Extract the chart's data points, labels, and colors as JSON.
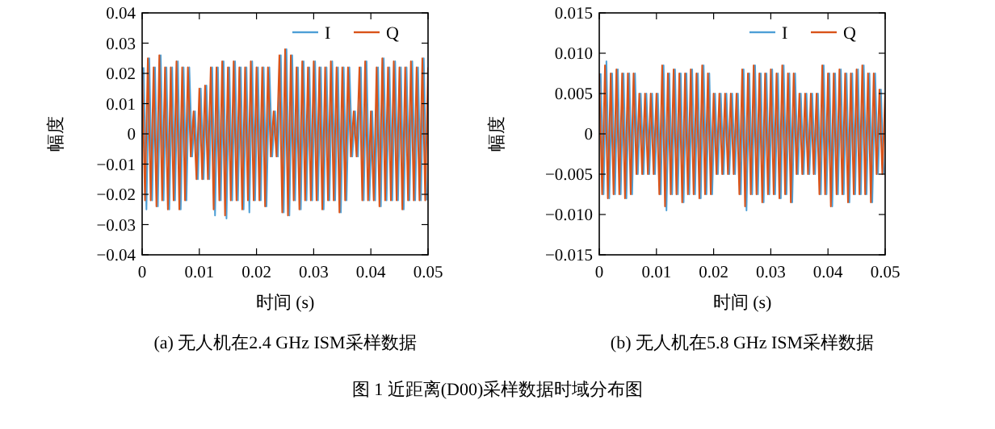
{
  "chart_data": [
    {
      "type": "line",
      "title": "(a) 无人机在2.4 GHz ISM采样数据",
      "xlabel": "时间 (s)",
      "ylabel": "幅度",
      "xlim": [
        0,
        0.05
      ],
      "ylim": [
        -0.04,
        0.04
      ],
      "xticks": [
        0,
        0.01,
        0.02,
        0.03,
        0.04,
        0.05
      ],
      "yticks": [
        -0.04,
        -0.03,
        -0.02,
        -0.01,
        0,
        0.01,
        0.02,
        0.03,
        0.04
      ],
      "legend": "top right",
      "line_style": "solid",
      "annotations": [
        "图 1 近距离(D00)采样数据时域分布图"
      ],
      "x": [
        0,
        0.0005,
        0.001,
        0.0015,
        0.002,
        0.0025,
        0.003,
        0.0035,
        0.004,
        0.0045,
        0.005,
        0.0055,
        0.006,
        0.0065,
        0.007,
        0.0075,
        0.008,
        0.0085,
        0.009,
        0.0095,
        0.01,
        0.0105,
        0.011,
        0.0115,
        0.012,
        0.0125,
        0.013,
        0.0135,
        0.014,
        0.0145,
        0.015,
        0.0155,
        0.016,
        0.0165,
        0.017,
        0.0175,
        0.018,
        0.0185,
        0.019,
        0.0195,
        0.02,
        0.0205,
        0.021,
        0.0215,
        0.022,
        0.0225,
        0.023,
        0.0235,
        0.024,
        0.0245,
        0.025,
        0.0255,
        0.026,
        0.0265,
        0.027,
        0.0275,
        0.028,
        0.0285,
        0.029,
        0.0295,
        0.03,
        0.0305,
        0.031,
        0.0315,
        0.032,
        0.0325,
        0.033,
        0.0335,
        0.034,
        0.0345,
        0.035,
        0.0355,
        0.036,
        0.0365,
        0.037,
        0.0375,
        0.038,
        0.0385,
        0.039,
        0.0395,
        0.04,
        0.0405,
        0.041,
        0.0415,
        0.042,
        0.0425,
        0.043,
        0.0435,
        0.044,
        0.0445,
        0.045,
        0.0455,
        0.046,
        0.0465,
        0.047,
        0.0475,
        0.048,
        0.0485,
        0.049,
        0.0495,
        0.05
      ],
      "series": [
        {
          "name": "I",
          "color": "#4d9fd6",
          "x": [
            0.00025,
            0.00075,
            0.00125,
            0.00175,
            0.00225,
            0.00275,
            0.00325,
            0.00375,
            0.00425,
            0.00475,
            0.00525,
            0.00575,
            0.00625,
            0.00675,
            0.00725,
            0.00775,
            0.00825,
            0.00875,
            0.00925,
            0.00975,
            0.01025,
            0.01075,
            0.01125,
            0.01175,
            0.01225,
            0.01275,
            0.01325,
            0.01375,
            0.01425,
            0.01475,
            0.01525,
            0.01575,
            0.01625,
            0.01675,
            0.01725,
            0.01775,
            0.01825,
            0.01875,
            0.01925,
            0.01975,
            0.02025,
            0.02075,
            0.02125,
            0.02175,
            0.02225,
            0.02275,
            0.02325,
            0.02375,
            0.02425,
            0.02475,
            0.02525,
            0.02575,
            0.02625,
            0.02675,
            0.02725,
            0.02775,
            0.02825,
            0.02875,
            0.02925,
            0.02975,
            0.03025,
            0.03075,
            0.03125,
            0.03175,
            0.03225,
            0.03275,
            0.03325,
            0.03375,
            0.03425,
            0.03475,
            0.03525,
            0.03575,
            0.03625,
            0.03675,
            0.03725,
            0.03775,
            0.03825,
            0.03875,
            0.03925,
            0.03975,
            0.04025,
            0.04075,
            0.04125,
            0.04175,
            0.04225,
            0.04275,
            0.04325,
            0.04375,
            0.04425,
            0.04475,
            0.04525,
            0.04575,
            0.04625,
            0.04675,
            0.04725,
            0.04775,
            0.04825,
            0.04875,
            0.04925,
            0.04975
          ],
          "values": [
            0.022,
            -0.025,
            0.025,
            -0.022,
            0.022,
            -0.024,
            0.026,
            -0.022,
            0.022,
            -0.025,
            0.022,
            -0.022,
            0.024,
            -0.025,
            0.022,
            -0.022,
            0.022,
            -0.0075,
            0.0075,
            -0.015,
            0.015,
            -0.015,
            0.016,
            -0.015,
            0.022,
            -0.027,
            0.022,
            -0.022,
            0.024,
            -0.028,
            0.022,
            -0.022,
            0.024,
            -0.022,
            0.022,
            -0.025,
            0.022,
            -0.026,
            0.024,
            -0.022,
            0.022,
            -0.022,
            0.022,
            -0.024,
            0.022,
            -0.0075,
            0.0075,
            -0.0075,
            0.026,
            -0.026,
            0.028,
            -0.027,
            0.026,
            -0.022,
            0.022,
            -0.025,
            0.024,
            -0.022,
            0.022,
            -0.022,
            0.024,
            -0.022,
            0.022,
            -0.025,
            0.022,
            -0.022,
            0.024,
            -0.022,
            0.022,
            -0.026,
            0.022,
            -0.022,
            0.022,
            -0.0075,
            0.0075,
            -0.0075,
            0.022,
            -0.022,
            0.024,
            -0.022,
            0.0075,
            -0.022,
            0.022,
            -0.024,
            0.025,
            -0.022,
            0.022,
            -0.022,
            0.024,
            -0.022,
            0.022,
            -0.025,
            0.022,
            -0.022,
            0.024,
            -0.022,
            0.022,
            -0.022,
            0.025,
            -0.022
          ]
        },
        {
          "name": "Q",
          "color": "#d95319",
          "values": [
            0.022,
            -0.022,
            0.025,
            -0.022,
            0.022,
            -0.024,
            0.026,
            -0.022,
            0.022,
            -0.025,
            0.022,
            -0.022,
            0.024,
            -0.025,
            0.022,
            -0.022,
            0.022,
            -0.0075,
            0.0075,
            -0.015,
            0.015,
            -0.015,
            0.016,
            -0.015,
            0.022,
            -0.025,
            0.022,
            -0.022,
            0.024,
            -0.027,
            0.022,
            -0.022,
            0.024,
            -0.022,
            0.022,
            -0.025,
            0.022,
            -0.022,
            0.024,
            -0.022,
            0.022,
            -0.022,
            0.022,
            -0.024,
            0.022,
            -0.0075,
            0.0075,
            -0.0075,
            0.026,
            -0.026,
            0.028,
            -0.027,
            0.026,
            -0.022,
            0.022,
            -0.025,
            0.024,
            -0.022,
            0.022,
            -0.022,
            0.024,
            -0.022,
            0.022,
            -0.025,
            0.022,
            -0.022,
            0.024,
            -0.022,
            0.022,
            -0.026,
            0.022,
            -0.022,
            0.022,
            -0.0075,
            0.0075,
            -0.0075,
            0.022,
            -0.022,
            0.024,
            -0.022,
            0.0075,
            -0.022,
            0.022,
            -0.024,
            0.025,
            -0.022,
            0.022,
            -0.022,
            0.024,
            -0.022,
            0.022,
            -0.025,
            0.022,
            -0.022,
            0.024,
            -0.022,
            0.022,
            -0.022,
            0.025,
            -0.022,
            0.022
          ]
        }
      ]
    },
    {
      "type": "line",
      "title": "(b) 无人机在5.8 GHz ISM采样数据",
      "xlabel": "时间 (s)",
      "ylabel": "幅度",
      "xlim": [
        0,
        0.05
      ],
      "ylim": [
        -0.015,
        0.015
      ],
      "xticks": [
        0,
        0.01,
        0.02,
        0.03,
        0.04,
        0.05
      ],
      "yticks": [
        {
          "value": -0.015,
          "label": "−0.015"
        },
        {
          "value": -0.01,
          "label": "−0.010"
        },
        {
          "value": -0.005,
          "label": "−0.005"
        },
        0,
        {
          "value": 0.005,
          "label": "0.005"
        },
        {
          "value": 0.01,
          "label": "0.010"
        },
        {
          "value": 0.015,
          "label": "0.015"
        }
      ],
      "legend": "top right",
      "line_style": "solid",
      "x": [
        0,
        0.0005,
        0.001,
        0.0015,
        0.002,
        0.0025,
        0.003,
        0.0035,
        0.004,
        0.0045,
        0.005,
        0.0055,
        0.006,
        0.0065,
        0.007,
        0.0075,
        0.008,
        0.0085,
        0.009,
        0.0095,
        0.01,
        0.0105,
        0.011,
        0.0115,
        0.012,
        0.0125,
        0.013,
        0.0135,
        0.014,
        0.0145,
        0.015,
        0.0155,
        0.016,
        0.0165,
        0.017,
        0.0175,
        0.018,
        0.0185,
        0.019,
        0.0195,
        0.02,
        0.0205,
        0.021,
        0.0215,
        0.022,
        0.0225,
        0.023,
        0.0235,
        0.024,
        0.0245,
        0.025,
        0.0255,
        0.026,
        0.0265,
        0.027,
        0.0275,
        0.028,
        0.0285,
        0.029,
        0.0295,
        0.03,
        0.0305,
        0.031,
        0.0315,
        0.032,
        0.0325,
        0.033,
        0.0335,
        0.034,
        0.0345,
        0.035,
        0.0355,
        0.036,
        0.0365,
        0.037,
        0.0375,
        0.038,
        0.0385,
        0.039,
        0.0395,
        0.04,
        0.0405,
        0.041,
        0.0415,
        0.042,
        0.0425,
        0.043,
        0.0435,
        0.044,
        0.0445,
        0.045,
        0.0455,
        0.046,
        0.0465,
        0.047,
        0.0475,
        0.048,
        0.0485,
        0.049,
        0.0495,
        0.05
      ],
      "series": [
        {
          "name": "I",
          "color": "#4d9fd6",
          "x": [
            0.00025,
            0.00075,
            0.00125,
            0.00175,
            0.00225,
            0.00275,
            0.00325,
            0.00375,
            0.00425,
            0.00475,
            0.00525,
            0.00575,
            0.00625,
            0.00675,
            0.00725,
            0.00775,
            0.00825,
            0.00875,
            0.00925,
            0.00975,
            0.01025,
            0.01075,
            0.01125,
            0.01175,
            0.01225,
            0.01275,
            0.01325,
            0.01375,
            0.01425,
            0.01475,
            0.01525,
            0.01575,
            0.01625,
            0.01675,
            0.01725,
            0.01775,
            0.01825,
            0.01875,
            0.01925,
            0.01975,
            0.02025,
            0.02075,
            0.02125,
            0.02175,
            0.02225,
            0.02275,
            0.02325,
            0.02375,
            0.02425,
            0.02475,
            0.02525,
            0.02575,
            0.02625,
            0.02675,
            0.02725,
            0.02775,
            0.02825,
            0.02875,
            0.02925,
            0.02975,
            0.03025,
            0.03075,
            0.03125,
            0.03175,
            0.03225,
            0.03275,
            0.03325,
            0.03375,
            0.03425,
            0.03475,
            0.03525,
            0.03575,
            0.03625,
            0.03675,
            0.03725,
            0.03775,
            0.03825,
            0.03875,
            0.03925,
            0.03975,
            0.04025,
            0.04075,
            0.04125,
            0.04175,
            0.04225,
            0.04275,
            0.04325,
            0.04375,
            0.04425,
            0.04475,
            0.04525,
            0.04575,
            0.04625,
            0.04675,
            0.04725,
            0.04775,
            0.04825,
            0.04875,
            0.04925,
            0.04975
          ],
          "values": [
            0.0075,
            -0.0075,
            0.009,
            -0.008,
            0.0075,
            -0.0075,
            0.008,
            -0.0075,
            0.0075,
            -0.008,
            0.0075,
            -0.0075,
            0.0075,
            -0.005,
            0.005,
            -0.005,
            0.005,
            -0.005,
            0.005,
            -0.005,
            0.005,
            -0.0075,
            0.0085,
            -0.0095,
            0.0075,
            -0.0075,
            0.008,
            -0.0075,
            0.0075,
            -0.0085,
            0.0075,
            -0.0075,
            0.008,
            -0.0075,
            0.0075,
            -0.008,
            0.0085,
            -0.0075,
            0.0075,
            -0.0075,
            0.005,
            -0.005,
            0.005,
            -0.005,
            0.005,
            -0.005,
            0.005,
            -0.005,
            0.005,
            -0.0075,
            0.008,
            -0.0095,
            0.0075,
            -0.0075,
            0.0085,
            -0.0075,
            0.0075,
            -0.0085,
            0.0075,
            -0.0075,
            0.008,
            -0.0075,
            0.0075,
            -0.008,
            0.0085,
            -0.0075,
            0.0075,
            -0.0085,
            0.0075,
            -0.005,
            0.005,
            -0.005,
            0.005,
            -0.005,
            0.005,
            -0.005,
            0.005,
            -0.0075,
            0.0085,
            -0.0075,
            0.0075,
            -0.009,
            0.0075,
            -0.0075,
            0.008,
            -0.0075,
            0.0075,
            -0.0085,
            0.0075,
            -0.0075,
            0.008,
            -0.0075,
            0.0085,
            -0.0075,
            0.0075,
            -0.0085,
            0.0075,
            -0.005,
            0.0055,
            -0.005
          ]
        },
        {
          "name": "Q",
          "color": "#d95319",
          "values": [
            0.0075,
            -0.0075,
            0.0085,
            -0.008,
            0.0075,
            -0.0075,
            0.008,
            -0.0075,
            0.0075,
            -0.008,
            0.0075,
            -0.0075,
            0.0075,
            -0.005,
            0.005,
            -0.005,
            0.005,
            -0.005,
            0.005,
            -0.005,
            0.005,
            -0.0075,
            0.0085,
            -0.009,
            0.0075,
            -0.0075,
            0.008,
            -0.0075,
            0.0075,
            -0.0085,
            0.0075,
            -0.0075,
            0.008,
            -0.0075,
            0.0075,
            -0.008,
            0.0085,
            -0.0075,
            0.0075,
            -0.0075,
            0.005,
            -0.005,
            0.005,
            -0.005,
            0.005,
            -0.005,
            0.005,
            -0.005,
            0.005,
            -0.0075,
            0.008,
            -0.009,
            0.0075,
            -0.0075,
            0.0085,
            -0.0075,
            0.0075,
            -0.0085,
            0.0075,
            -0.0075,
            0.008,
            -0.0075,
            0.0075,
            -0.008,
            0.0085,
            -0.0075,
            0.0075,
            -0.0085,
            0.0075,
            -0.005,
            0.005,
            -0.005,
            0.005,
            -0.005,
            0.005,
            -0.005,
            0.005,
            -0.0075,
            0.0085,
            -0.0075,
            0.0075,
            -0.009,
            0.0075,
            -0.0075,
            0.008,
            -0.0075,
            0.0075,
            -0.0085,
            0.0075,
            -0.0075,
            0.008,
            -0.0075,
            0.0085,
            -0.0075,
            0.0075,
            -0.0085,
            0.0075,
            -0.005,
            0.0055,
            -0.005,
            0.005
          ]
        }
      ]
    }
  ]
}
